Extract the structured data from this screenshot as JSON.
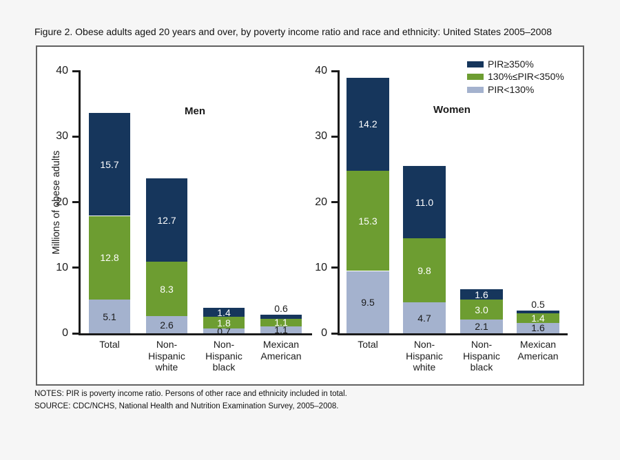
{
  "figure_title": "Figure 2. Obese adults aged 20 years and over, by poverty income ratio and race and ethnicity: United States 2005–2008",
  "notes": [
    "NOTES: PIR is poverty income ratio. Persons of other race and ethnicity included in total.",
    "SOURCE: CDC/NCHS, National Health and Nutrition Examination Survey, 2005–2008."
  ],
  "colors": {
    "navy": "#16365c",
    "green": "#6d9d31",
    "light_blue": "#a4b2ce",
    "background": "#f6f6f6",
    "panel_border": "#606060",
    "axis": "#1a1a1a"
  },
  "chart_data": {
    "type": "bar",
    "stacked": true,
    "title": "Figure 2. Obese adults aged 20 years and over, by poverty income ratio and race and ethnicity: United States 2005–2008",
    "ylabel": "Millions of obese adults",
    "ylim": [
      0,
      40
    ],
    "yticks": [
      0,
      10,
      20,
      30,
      40
    ],
    "grid": false,
    "legend_position": "top-right",
    "categories": [
      "Total",
      "Non-\nHispanic\nwhite",
      "Non-\nHispanic\nblack",
      "Mexican\nAmerican"
    ],
    "legend": [
      {
        "label": "PIR≥350%",
        "color": "#16365c"
      },
      {
        "label": "130%≤PIR<350%",
        "color": "#6d9d31"
      },
      {
        "label": "PIR<130%",
        "color": "#a4b2ce"
      }
    ],
    "panels": [
      {
        "name": "Men",
        "series": [
          {
            "name": "PIR<130%",
            "color": "#a4b2ce",
            "label_color": "#1a1a1a",
            "values": [
              5.1,
              2.6,
              0.7,
              1.1
            ]
          },
          {
            "name": "130%≤PIR<350%",
            "color": "#6d9d31",
            "label_color": "#ffffff",
            "values": [
              12.8,
              8.3,
              1.8,
              1.1
            ]
          },
          {
            "name": "PIR≥350%",
            "color": "#16365c",
            "label_color": "#ffffff",
            "values": [
              15.7,
              12.7,
              1.4,
              0.6
            ]
          }
        ]
      },
      {
        "name": "Women",
        "series": [
          {
            "name": "PIR<130%",
            "color": "#a4b2ce",
            "label_color": "#1a1a1a",
            "values": [
              9.5,
              4.7,
              2.1,
              1.6
            ]
          },
          {
            "name": "130%≤PIR<350%",
            "color": "#6d9d31",
            "label_color": "#ffffff",
            "values": [
              15.3,
              9.8,
              3.0,
              1.4
            ]
          },
          {
            "name": "PIR≥350%",
            "color": "#16365c",
            "label_color": "#ffffff",
            "values": [
              14.2,
              11.0,
              1.6,
              0.5
            ]
          }
        ]
      }
    ]
  }
}
